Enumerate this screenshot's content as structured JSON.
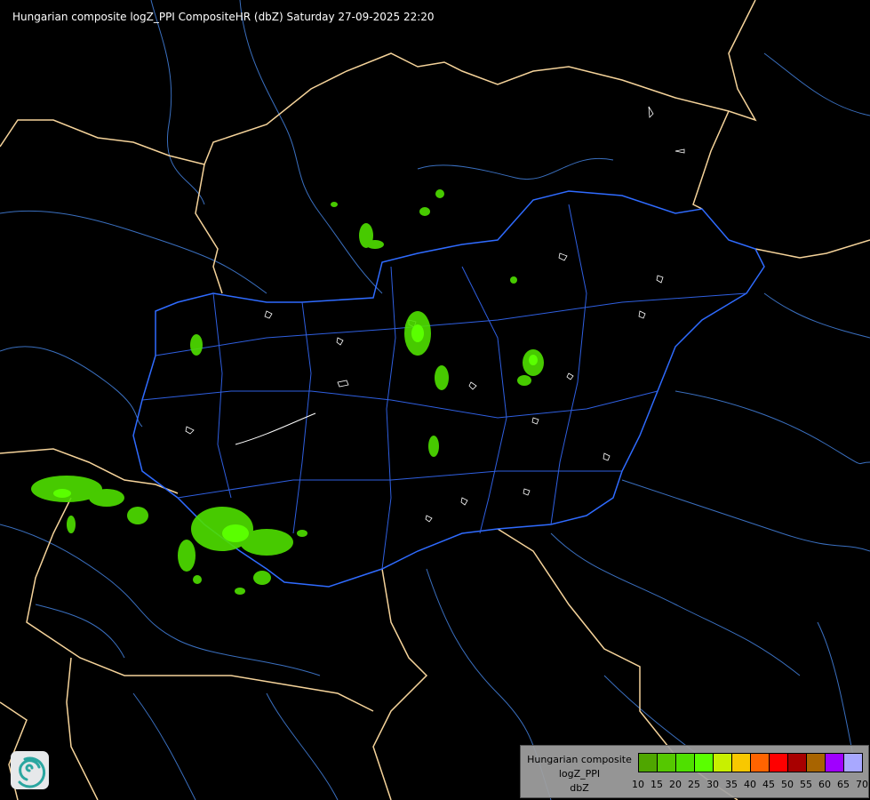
{
  "title": "Hungarian composite logZ_PPI CompositeHR (dbZ) Saturday 27-09-2025 22:20",
  "legend": {
    "lines": [
      "Hungarian composite",
      "logZ_PPI",
      "dbZ"
    ],
    "ticks": [
      "10",
      "15",
      "20",
      "25",
      "30",
      "35",
      "40",
      "45",
      "50",
      "55",
      "60",
      "65",
      "70"
    ],
    "colors": [
      "#4fa600",
      "#55c800",
      "#4fe000",
      "#5aff00",
      "#c8f000",
      "#f8c800",
      "#ff6400",
      "#ff0000",
      "#a80000",
      "#a86400",
      "#a000ff",
      "#a8a8ff"
    ]
  },
  "colors": {
    "country_border": "#f5d39a",
    "river": "#3a6fbf",
    "hungary_border": "#2f6bff",
    "county_border": "#ffffff",
    "precip_light": "#4fe000",
    "precip_mid": "#5aff00"
  },
  "logo": {
    "icon": "swirl-logo-icon"
  }
}
